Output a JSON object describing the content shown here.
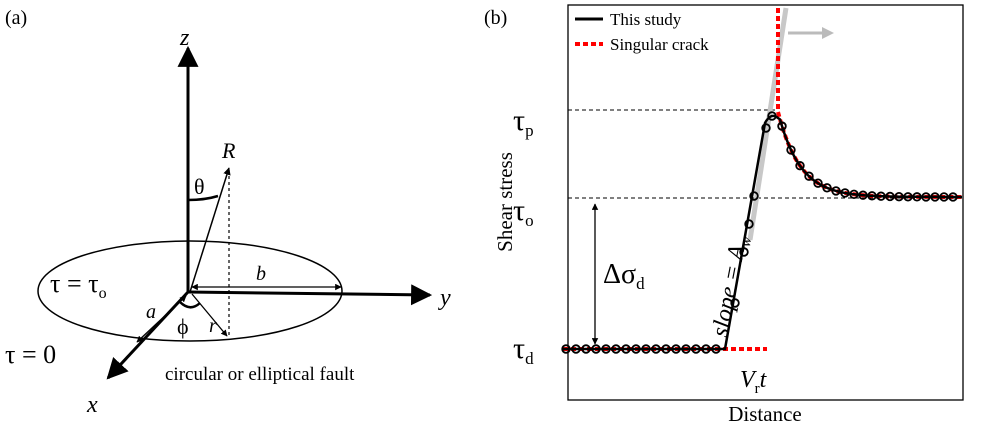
{
  "panel_a": {
    "label": "(a)",
    "axes": {
      "x": "x",
      "y": "y",
      "z": "z"
    },
    "labels": {
      "R": "R",
      "theta": "θ",
      "b": "b",
      "a": "a",
      "r": "r",
      "phi": "ϕ"
    },
    "tau_inside": {
      "base": "τ = τ",
      "sub": "o"
    },
    "tau_outside": "τ = 0",
    "caption": "circular or elliptical fault"
  },
  "panel_b": {
    "label": "(b)",
    "legend": [
      {
        "name": "This study",
        "color": "#000000"
      },
      {
        "name": "Singular crack",
        "color": "#ff0000"
      }
    ],
    "tau_p": {
      "base": "τ",
      "sub": "p"
    },
    "tau_o": {
      "base": "τ",
      "sub": "o"
    },
    "tau_d": {
      "base": "τ",
      "sub": "d"
    },
    "delta_sigma": {
      "base": "Δσ",
      "sub": "d"
    },
    "slope": {
      "base": "slope = A",
      "sub": "w"
    },
    "vr_t": {
      "base": "V",
      "sub": "r",
      "tail": "t"
    },
    "ylabel": "Shear stress",
    "xlabel": "Distance"
  }
}
